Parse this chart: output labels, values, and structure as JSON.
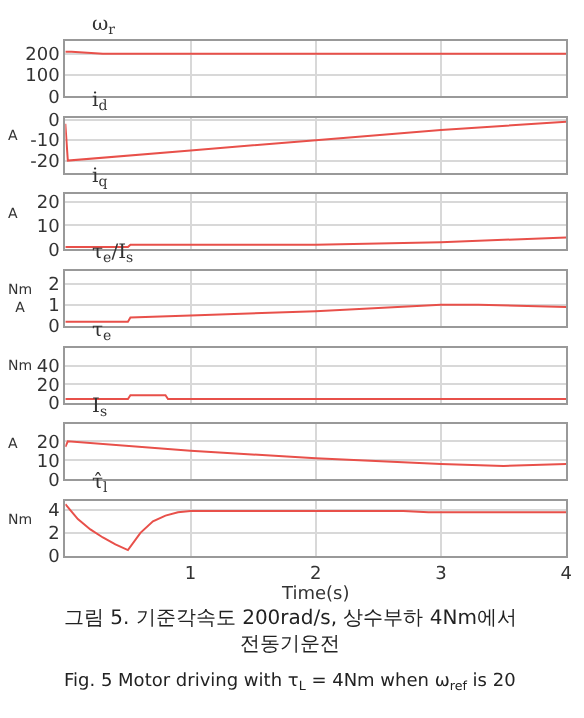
{
  "chart_data": [
    {
      "type": "line",
      "title": "ω$_{r}$",
      "x": [
        0,
        0.05,
        0.3,
        0.5,
        1,
        2,
        3,
        4
      ],
      "values": [
        210,
        210,
        200,
        200,
        200,
        200,
        200,
        200
      ],
      "color": "#e8504a",
      "xlim": [
        0,
        4
      ],
      "xticks": [
        1,
        2,
        3,
        4
      ],
      "ylim": [
        0,
        260
      ],
      "yticks": [
        0,
        100,
        200
      ],
      "grid": true,
      "tick_labels": "y"
    },
    {
      "type": "line",
      "title": "i$_{d}$",
      "ylabel": "A",
      "x": [
        0,
        0.02,
        1,
        2,
        3,
        4
      ],
      "values": [
        -2,
        -20,
        -15,
        -10,
        -5,
        -1
      ],
      "color": "#e8504a",
      "xlim": [
        0,
        4
      ],
      "xticks": [
        1,
        2,
        3,
        4
      ],
      "ylim": [
        -26,
        1
      ],
      "yticks": [
        0,
        -10,
        -20
      ],
      "grid": true,
      "tick_labels": "y"
    },
    {
      "type": "line",
      "title": "i$_{q}$",
      "ylabel": "A",
      "x": [
        0,
        0.5,
        0.52,
        1,
        2,
        3,
        4
      ],
      "values": [
        1,
        1,
        2,
        2,
        2,
        3,
        5
      ],
      "color": "#e8504a",
      "xlim": [
        0,
        4
      ],
      "xticks": [
        1,
        2,
        3,
        4
      ],
      "ylim": [
        0,
        23
      ],
      "yticks": [
        0,
        10,
        20
      ],
      "grid": true,
      "tick_labels": "y"
    },
    {
      "type": "line",
      "title": "τ$_{e}$/I$_{s}$",
      "ylabel": "Nm\nA",
      "x": [
        0,
        0.5,
        0.52,
        1,
        2,
        3,
        3.3,
        4
      ],
      "values": [
        0.2,
        0.2,
        0.4,
        0.5,
        0.7,
        1.0,
        1.0,
        0.9
      ],
      "color": "#e8504a",
      "xlim": [
        0,
        4
      ],
      "xticks": [
        1,
        2,
        3,
        4
      ],
      "ylim": [
        0,
        2.6
      ],
      "yticks": [
        0,
        1,
        2
      ],
      "grid": true,
      "tick_labels": "y"
    },
    {
      "type": "line",
      "title": "τ$_{e}$",
      "ylabel": "Nm",
      "x": [
        0,
        0.5,
        0.52,
        0.8,
        0.82,
        2,
        3,
        4
      ],
      "values": [
        4,
        4,
        8,
        8,
        4,
        4,
        4,
        4
      ],
      "color": "#e8504a",
      "xlim": [
        0,
        4
      ],
      "xticks": [
        1,
        2,
        3,
        4
      ],
      "ylim": [
        0,
        60
      ],
      "yticks": [
        0,
        20,
        40
      ],
      "grid": true,
      "tick_labels": "y"
    },
    {
      "type": "line",
      "title": "I$_{s}$",
      "ylabel": "A",
      "x": [
        0,
        0.02,
        1,
        2,
        3,
        3.5,
        4
      ],
      "values": [
        17,
        20,
        15,
        11,
        8,
        7,
        8
      ],
      "color": "#e8504a",
      "xlim": [
        0,
        4
      ],
      "xticks": [
        1,
        2,
        3,
        4
      ],
      "ylim": [
        0,
        29
      ],
      "yticks": [
        0,
        10,
        20
      ],
      "grid": true,
      "tick_labels": "y"
    },
    {
      "type": "line",
      "title": "τ̂$_{l}$",
      "ylabel": "Nm",
      "xlabel": "Time(s)",
      "x": [
        0,
        0.1,
        0.2,
        0.3,
        0.4,
        0.5,
        0.6,
        0.7,
        0.8,
        0.9,
        1,
        2,
        2.7,
        2.9,
        3,
        4
      ],
      "values": [
        4.5,
        3.2,
        2.3,
        1.6,
        1.0,
        0.5,
        2.0,
        3.0,
        3.5,
        3.8,
        3.9,
        3.9,
        3.9,
        3.8,
        3.8,
        3.8
      ],
      "color": "#e8504a",
      "xlim": [
        0,
        4
      ],
      "xticks": [
        1,
        2,
        3,
        4
      ],
      "ylim": [
        0,
        4.8
      ],
      "yticks": [
        0,
        2,
        4
      ],
      "grid": true,
      "annotations": [
        "그림 5. 기준각속도 200rad/s, 상수부하 4Nm에서\n전동기운전",
        "Fig. 5 Motor driving with τ$_{L}$ = 4Nm when ω$_{ref}$ is 20"
      ]
    }
  ]
}
